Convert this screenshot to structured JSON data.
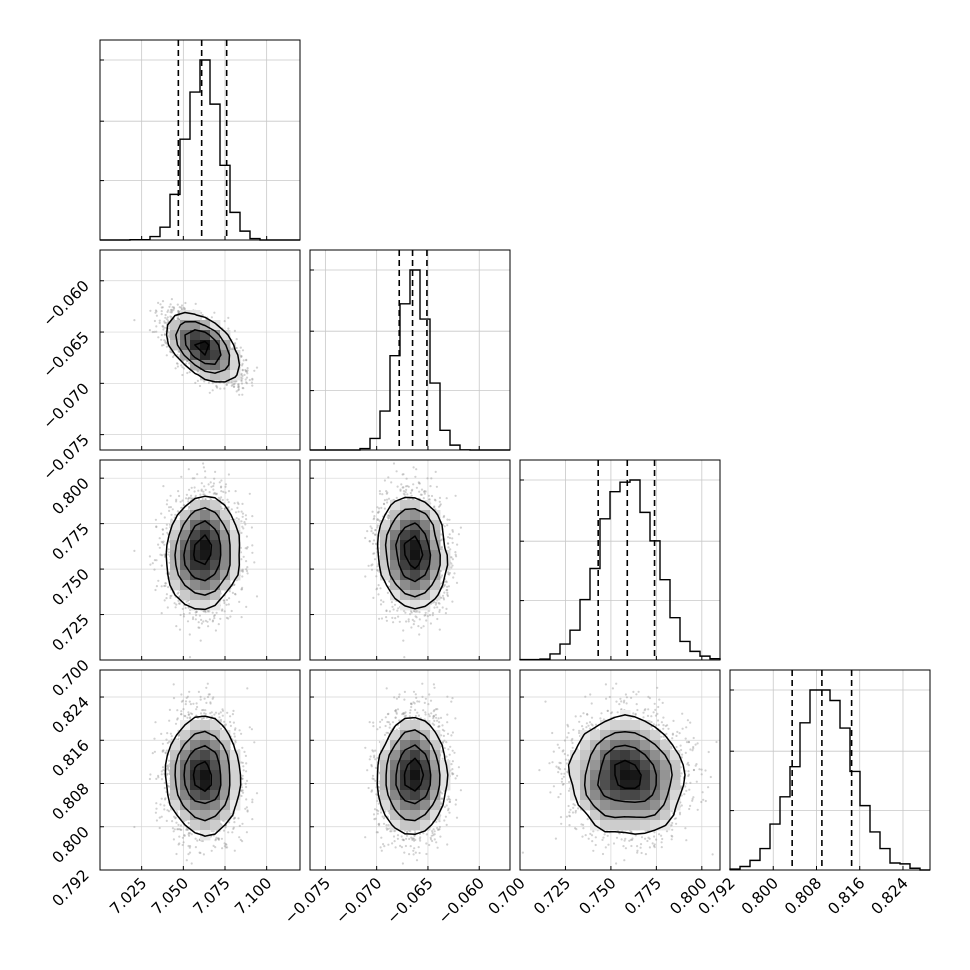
{
  "chart_data": {
    "type": "corner",
    "parameters": [
      {
        "ticks": [
          7.025,
          7.05,
          7.075,
          7.1
        ],
        "tick_labels": [
          "7.025",
          "7.050",
          "7.075",
          "7.100"
        ],
        "range": [
          7.0,
          7.12
        ],
        "mean": 7.062,
        "sd": 0.01,
        "quantiles": [
          7.047,
          7.061,
          7.076
        ]
      },
      {
        "ticks": [
          -0.075,
          -0.07,
          -0.065,
          -0.06
        ],
        "tick_labels": [
          "−0.075",
          "−0.070",
          "−0.065",
          "−0.060"
        ],
        "range": [
          -0.0765,
          -0.057
        ],
        "mean": -0.0665,
        "sd": 0.0015,
        "quantiles": [
          -0.0678,
          -0.0665,
          -0.0651
        ]
      },
      {
        "ticks": [
          0.7,
          0.725,
          0.75,
          0.775,
          0.8
        ],
        "tick_labels": [
          "0.700",
          "0.725",
          "0.750",
          "0.775",
          "0.800"
        ],
        "range": [
          0.7,
          0.81
        ],
        "mean": 0.759,
        "sd": 0.015,
        "quantiles": [
          0.743,
          0.759,
          0.774
        ]
      },
      {
        "ticks": [
          0.792,
          0.8,
          0.808,
          0.816,
          0.824
        ],
        "tick_labels": [
          "0.792",
          "0.800",
          "0.808",
          "0.816",
          "0.824"
        ],
        "range": [
          0.792,
          0.829
        ],
        "mean": 0.8095,
        "sd": 0.0053,
        "quantiles": [
          0.8035,
          0.809,
          0.8145
        ]
      }
    ],
    "correlations": [
      [
        1,
        -0.6,
        0.05,
        0.0
      ],
      [
        -0.6,
        1,
        -0.1,
        0.05
      ],
      [
        0.05,
        -0.1,
        1,
        -0.05
      ],
      [
        0.0,
        0.05,
        -0.05,
        1
      ]
    ],
    "histogram": {
      "style": "step",
      "bins": 20,
      "quantile_lines": "dashed"
    },
    "density": {
      "levels": [
        0.12,
        0.39,
        0.68,
        0.86
      ],
      "points_color": "#9a9a9a",
      "contour_color": "#000000"
    },
    "grid": true
  }
}
